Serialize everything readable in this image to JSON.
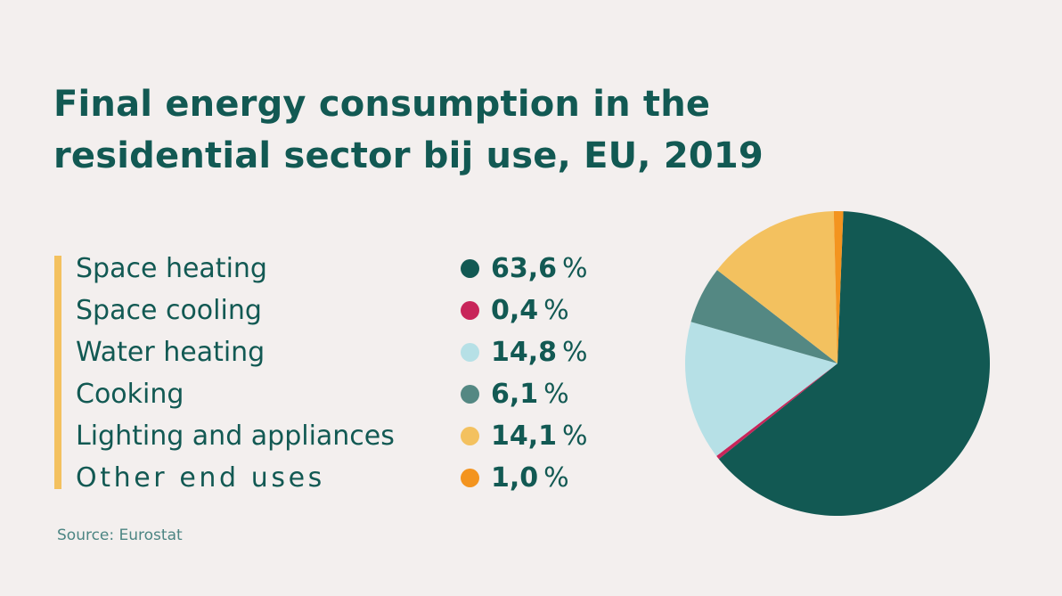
{
  "title_line1": "Final energy consumption in the",
  "title_line2": "residential sector bij use, EU, 2019",
  "source": "Source: Eurostat",
  "percent_sign": "%",
  "chart_data": {
    "type": "pie",
    "title": "Final energy consumption in the residential sector bij use, EU, 2019",
    "decimal_separator": ",",
    "categories": [
      "Space heating",
      "Space cooling",
      "Water heating",
      "Cooking",
      "Lighting and appliances",
      "Other end uses"
    ],
    "values": [
      63.6,
      0.4,
      14.8,
      6.1,
      14.1,
      1.0
    ],
    "value_labels": [
      "63,6",
      "0,4",
      "14,8",
      "6,1",
      "14,1",
      "1,0"
    ],
    "colors": [
      "#125953",
      "#c8255a",
      "#b6e0e6",
      "#548883",
      "#f3c15f",
      "#f3941f"
    ],
    "legend_position": "left",
    "start_angle_deg": 2.2,
    "direction": "clockwise"
  }
}
